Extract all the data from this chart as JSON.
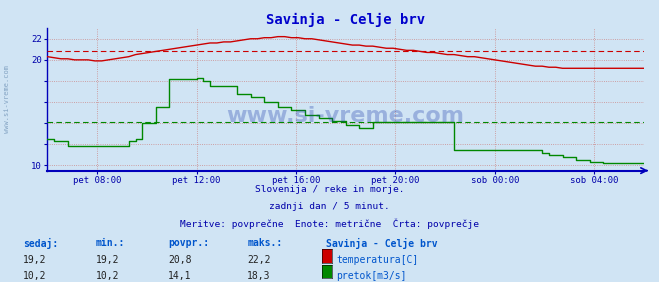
{
  "title": "Savinja - Celje brv",
  "title_color": "#0000cc",
  "bg_color": "#d0e4f4",
  "plot_bg_color": "#d0e4f4",
  "x_labels": [
    "pet 08:00",
    "pet 12:00",
    "pet 16:00",
    "pet 20:00",
    "sob 00:00",
    "sob 04:00"
  ],
  "x_ticks_norm": [
    0.083,
    0.25,
    0.417,
    0.583,
    0.75,
    0.917
  ],
  "ylim_min": 9.5,
  "ylim_max": 23.0,
  "ytick_labels": [
    "10",
    "",
    "",
    "",
    "",
    "20",
    "22"
  ],
  "ytick_vals": [
    10,
    12,
    14,
    16,
    18,
    20,
    22
  ],
  "temp_avg": 20.8,
  "flow_avg": 14.1,
  "temp_color": "#cc0000",
  "flow_color": "#008800",
  "axis_color": "#0000bb",
  "grid_color_v": "#cc8888",
  "grid_color_h": "#cc8888",
  "tick_label_color": "#0000aa",
  "watermark": "www.si-vreme.com",
  "watermark_color": "#1a3aaa",
  "sidebar_text": "www.si-vreme.com",
  "sidebar_color": "#7799bb",
  "subtitle1": "Slovenija / reke in morje.",
  "subtitle2": "zadnji dan / 5 minut.",
  "subtitle3": "Meritve: povprečne  Enote: metrične  Črta: povprečje",
  "subtitle_color": "#0000aa",
  "footer_label_color": "#0055cc",
  "footer_headers": [
    "sedaj:",
    "min.:",
    "povpr.:",
    "maks.:"
  ],
  "footer_temp": [
    19.2,
    19.2,
    20.8,
    22.2
  ],
  "footer_flow": [
    10.2,
    10.2,
    14.1,
    18.3
  ],
  "legend_title": "Savinja - Celje brv",
  "legend_temp": "temperatura[C]",
  "legend_flow": "pretok[m3/s]",
  "temp_data": [
    20.3,
    20.2,
    20.1,
    20.1,
    20.0,
    20.0,
    20.0,
    19.9,
    19.9,
    20.0,
    20.1,
    20.2,
    20.3,
    20.5,
    20.6,
    20.7,
    20.8,
    20.9,
    21.0,
    21.1,
    21.2,
    21.3,
    21.4,
    21.5,
    21.6,
    21.6,
    21.7,
    21.7,
    21.8,
    21.9,
    22.0,
    22.0,
    22.1,
    22.1,
    22.2,
    22.2,
    22.1,
    22.1,
    22.0,
    22.0,
    21.9,
    21.8,
    21.7,
    21.6,
    21.5,
    21.4,
    21.4,
    21.3,
    21.3,
    21.2,
    21.1,
    21.1,
    21.0,
    20.9,
    20.9,
    20.8,
    20.7,
    20.7,
    20.6,
    20.5,
    20.5,
    20.4,
    20.3,
    20.3,
    20.2,
    20.1,
    20.0,
    19.9,
    19.8,
    19.7,
    19.6,
    19.5,
    19.4,
    19.4,
    19.3,
    19.3,
    19.2,
    19.2,
    19.2,
    19.2,
    19.2,
    19.2,
    19.2,
    19.2,
    19.2,
    19.2,
    19.2,
    19.2,
    19.2
  ],
  "flow_data": [
    12.5,
    12.3,
    12.3,
    11.8,
    11.8,
    11.8,
    11.8,
    11.8,
    11.8,
    11.8,
    11.8,
    11.8,
    12.3,
    12.5,
    14.0,
    14.0,
    15.5,
    15.5,
    18.2,
    18.2,
    18.2,
    18.2,
    18.3,
    18.0,
    17.5,
    17.5,
    17.5,
    17.5,
    16.8,
    16.8,
    16.5,
    16.5,
    16.0,
    16.0,
    15.5,
    15.5,
    15.2,
    15.2,
    14.8,
    14.8,
    14.5,
    14.5,
    14.2,
    14.2,
    13.8,
    13.8,
    13.5,
    13.5,
    14.1,
    14.1,
    14.1,
    14.1,
    14.1,
    14.1,
    14.1,
    14.1,
    14.1,
    14.1,
    14.1,
    14.1,
    11.5,
    11.5,
    11.5,
    11.5,
    11.5,
    11.5,
    11.5,
    11.5,
    11.5,
    11.5,
    11.5,
    11.5,
    11.5,
    11.2,
    11.0,
    11.0,
    10.8,
    10.8,
    10.5,
    10.5,
    10.3,
    10.3,
    10.2,
    10.2,
    10.2,
    10.2,
    10.2,
    10.2,
    10.2
  ]
}
